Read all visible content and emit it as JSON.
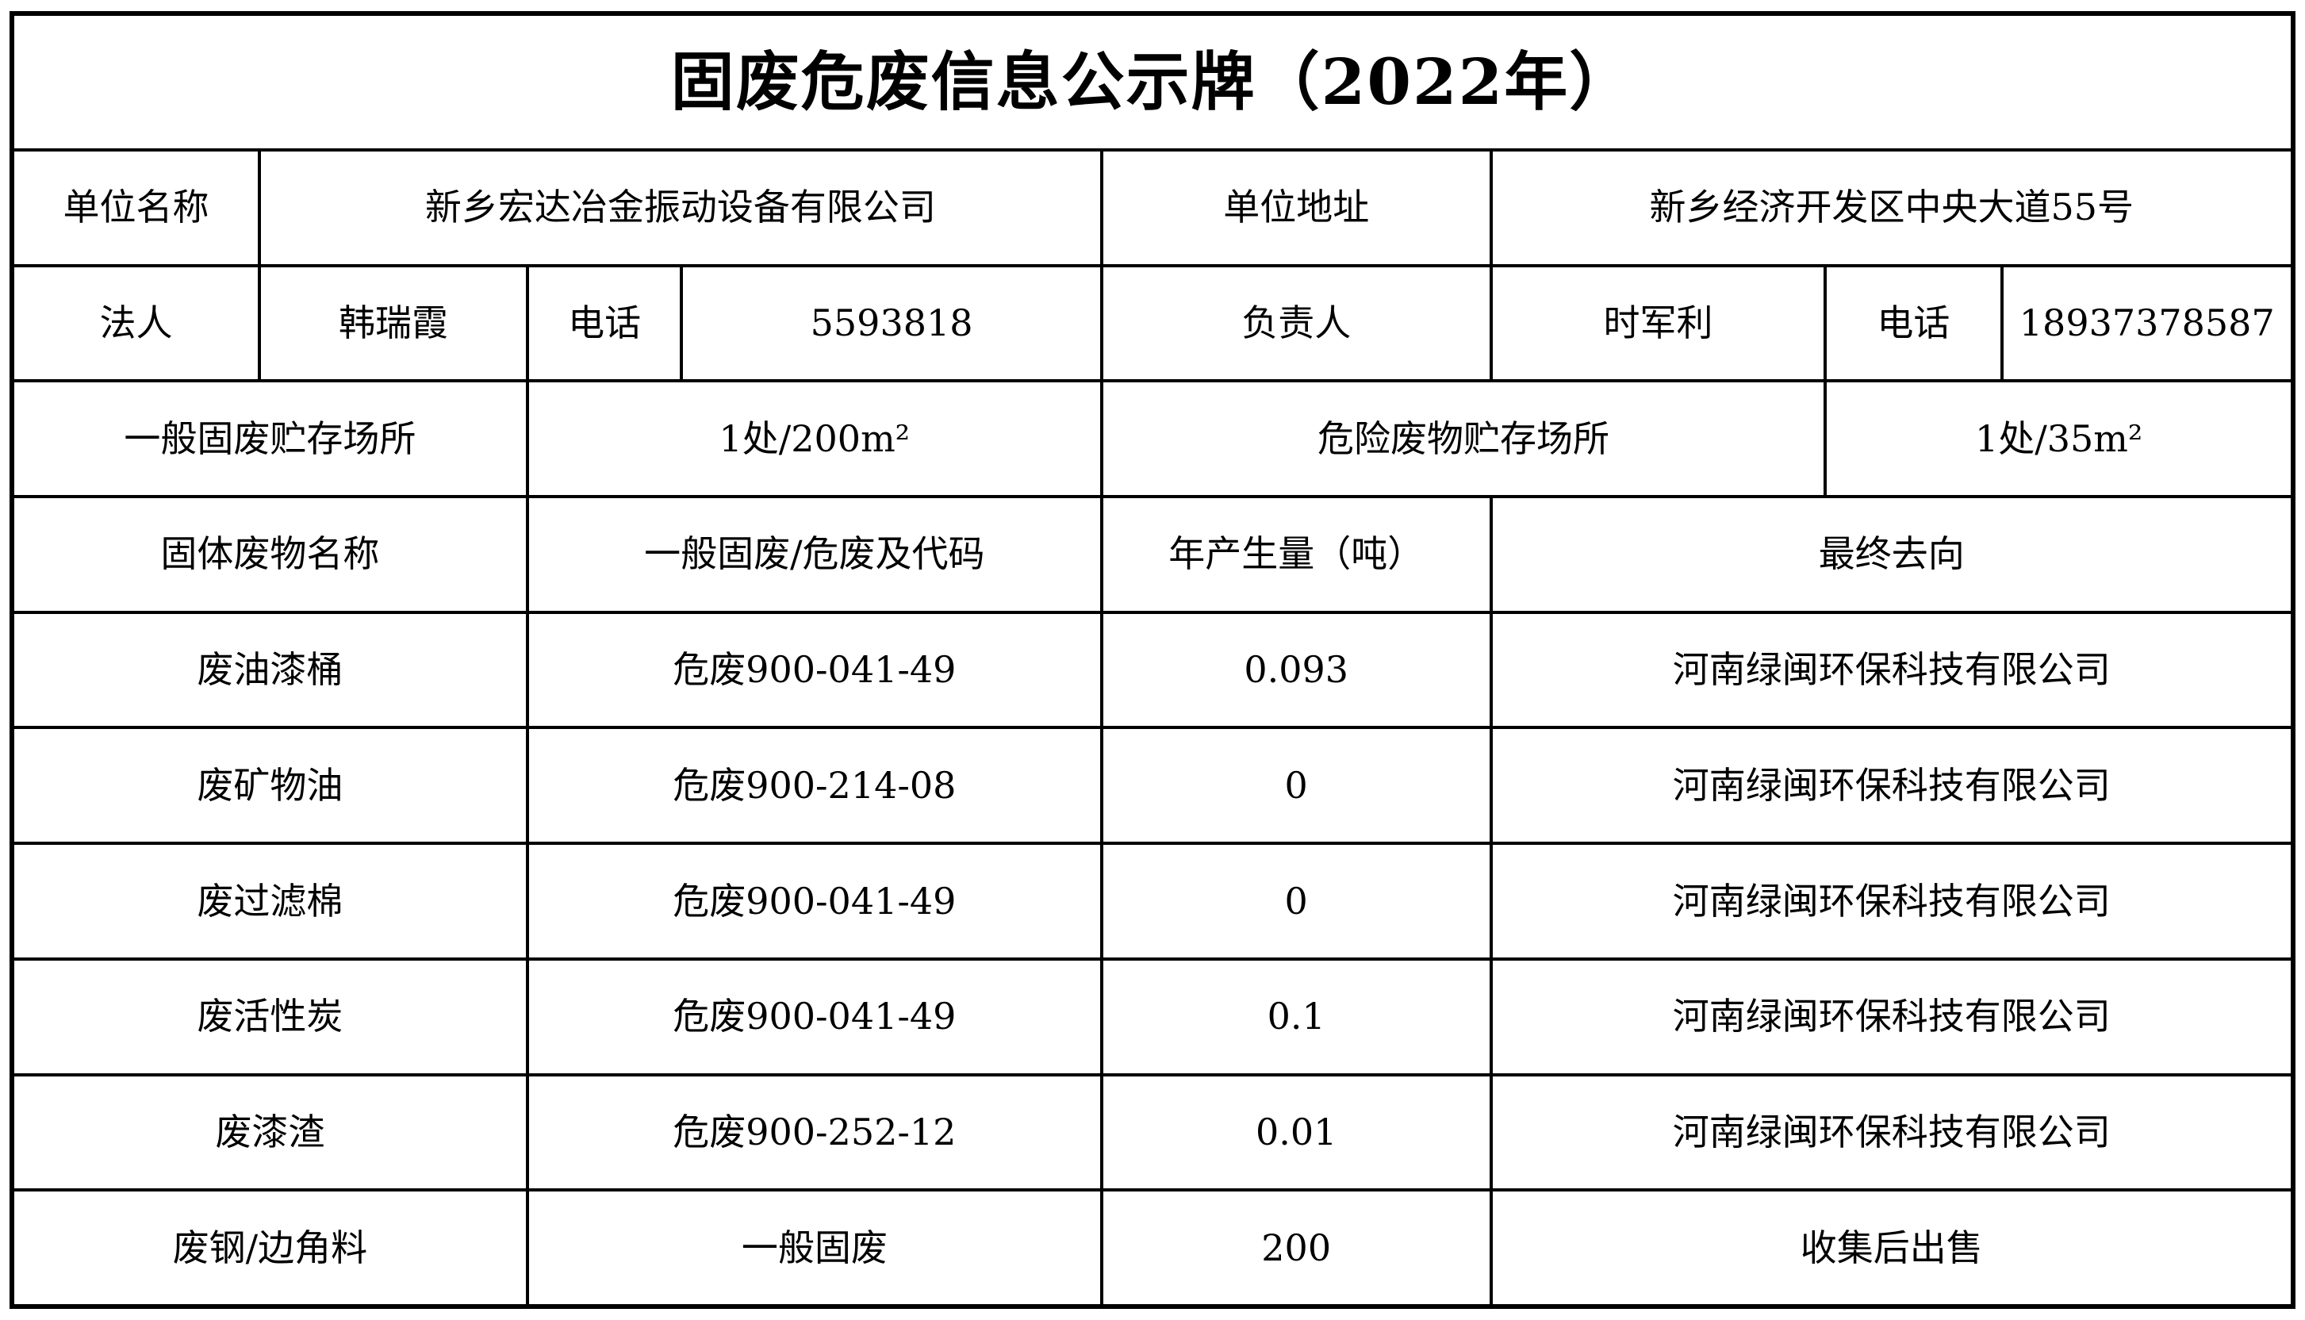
{
  "title": "固废危废信息公示牌（2022年）",
  "company_info": {
    "unit_name_label": "单位名称",
    "unit_name": "新乡宏达冶金振动设备有限公司",
    "unit_address_label": "单位地址",
    "unit_address": "新乡经济开发区中央大道55号",
    "legal_person_label": "法人",
    "legal_person": "韩瑞霞",
    "phone_label": "电话",
    "phone": "5593818",
    "manager_label": "负责人",
    "manager": "时军利",
    "manager_phone_label": "电话",
    "manager_phone": "18937378587",
    "general_storage_label": "一般固废贮存场所",
    "general_storage": "1处/200m²",
    "hazardous_storage_label": "危险废物贮存场所",
    "hazardous_storage": "1处/35m²"
  },
  "waste_table": {
    "headers": {
      "name": "固体废物名称",
      "code": "一般固废/危废及代码",
      "amount": "年产生量（吨）",
      "destination": "最终去向"
    },
    "rows": [
      {
        "name": "废油漆桶",
        "code": "危废900-041-49",
        "amount": "0.093",
        "destination": "河南绿闽环保科技有限公司"
      },
      {
        "name": "废矿物油",
        "code": "危废900-214-08",
        "amount": "0",
        "destination": "河南绿闽环保科技有限公司"
      },
      {
        "name": "废过滤棉",
        "code": "危废900-041-49",
        "amount": "0",
        "destination": "河南绿闽环保科技有限公司"
      },
      {
        "name": "废活性炭",
        "code": "危废900-041-49",
        "amount": "0.1",
        "destination": "河南绿闽环保科技有限公司"
      },
      {
        "name": "废漆渣",
        "code": "危废900-252-12",
        "amount": "0.01",
        "destination": "河南绿闽环保科技有限公司"
      },
      {
        "name": "废钢/边角料",
        "code": "一般固废",
        "amount": "200",
        "destination": "收集后出售"
      }
    ]
  },
  "colors": {
    "background": "#ffffff",
    "border": "#000000",
    "text": "#000000"
  }
}
